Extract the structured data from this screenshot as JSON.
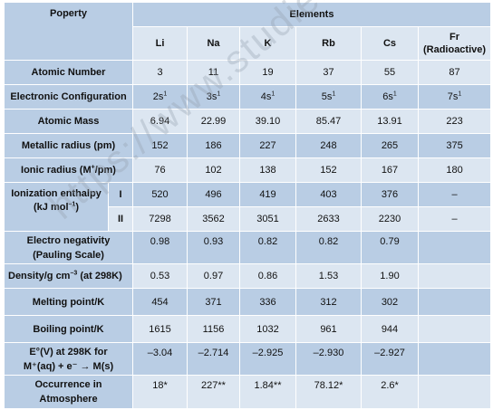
{
  "watermark": "https://www.studiestoday.com",
  "header": {
    "property": "Poperty",
    "elements": "Elements",
    "symbols": [
      "Li",
      "Na",
      "K",
      "Rb",
      "Cs",
      "Fr"
    ],
    "fr_note": "(Radioactive)"
  },
  "rows": {
    "atomic_number": {
      "label": "Atomic Number",
      "values": [
        "3",
        "11",
        "19",
        "37",
        "55",
        "87"
      ]
    },
    "electronic_configuration": {
      "label": "Electronic Configuration",
      "values": [
        "2s",
        "3s",
        "4s",
        "5s",
        "6s",
        "7s"
      ],
      "sup": "1"
    },
    "atomic_mass": {
      "label": "Atomic Mass",
      "values": [
        "6.94",
        "22.99",
        "39.10",
        "85.47",
        "13.91",
        "223"
      ]
    },
    "metallic_radius": {
      "label": "Metallic radius (pm)",
      "values": [
        "152",
        "186",
        "227",
        "248",
        "265",
        "375"
      ]
    },
    "ionic_radius": {
      "label_pre": "Ionic radius (M",
      "label_sup": "+",
      "label_post": "/pm)",
      "values": [
        "76",
        "102",
        "138",
        "152",
        "167",
        "180"
      ]
    },
    "ionization_enthalpy": {
      "label_line1": "Ionization enthalpy",
      "label_line2_pre": "(kJ mol",
      "label_line2_sup": "–1",
      "label_line2_post": ")",
      "sub1": "I",
      "sub2": "II",
      "values_I": [
        "520",
        "496",
        "419",
        "403",
        "376",
        "–"
      ],
      "values_II": [
        "7298",
        "3562",
        "3051",
        "2633",
        "2230",
        "–"
      ]
    },
    "electronegativity": {
      "label_line1": "Electro negativity",
      "label_line2": "(Pauling Scale)",
      "values": [
        "0.98",
        "0.93",
        "0.82",
        "0.82",
        "0.79",
        ""
      ]
    },
    "density": {
      "label_pre": "Density/g cm",
      "label_sup": "–3",
      "label_post": " (at 298K)",
      "values": [
        "0.53",
        "0.97",
        "0.86",
        "1.53",
        "1.90",
        ""
      ]
    },
    "melting_point": {
      "label": "Melting point/K",
      "values": [
        "454",
        "371",
        "336",
        "312",
        "302",
        ""
      ]
    },
    "boiling_point": {
      "label": "Boiling point/K",
      "values": [
        "1615",
        "1156",
        "1032",
        "961",
        "944",
        ""
      ]
    },
    "electrode_potential": {
      "label_line1": "E°(V) at 298K for",
      "label_line2": "M⁺(aq) + e⁻ → M(s)",
      "values": [
        "–3.04",
        "–2.714",
        "–2.925",
        "–2.930",
        "–2.927",
        ""
      ]
    },
    "occurrence": {
      "label_line1": "Occurrence in",
      "label_line2": "Atmosphere",
      "values": [
        "18*",
        "227**",
        "1.84**",
        "78.12*",
        "2.6*",
        ""
      ]
    }
  }
}
